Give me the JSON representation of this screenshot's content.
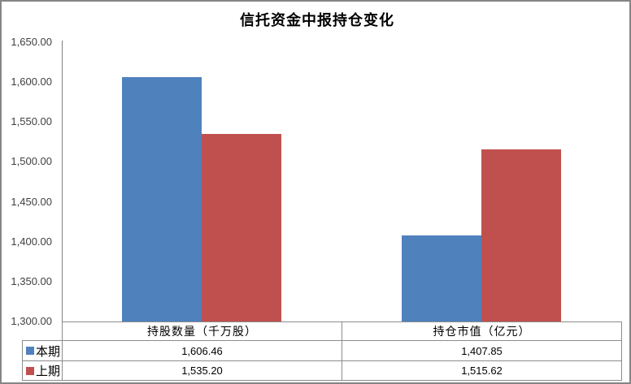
{
  "title": "信托资金中报持仓变化",
  "colors": {
    "series_current": "#4F81BD",
    "series_previous": "#C0504D",
    "table_border": "#8C8C8C",
    "axis_line": "#808080",
    "tick_text": "#3F3F3F"
  },
  "chart_data": {
    "type": "bar",
    "title": "信托资金中报持仓变化",
    "categories": [
      "持股数量（千万股）",
      "持仓市值（亿元）"
    ],
    "series": [
      {
        "name": "本期",
        "color": "#4F81BD",
        "values": [
          1606.46,
          1407.85
        ]
      },
      {
        "name": "上期",
        "color": "#C0504D",
        "values": [
          1535.2,
          1515.62
        ]
      }
    ],
    "ylim": [
      1300,
      1650
    ],
    "ytick_step": 50,
    "ytick_labels": [
      "1,650.00",
      "1,600.00",
      "1,550.00",
      "1,500.00",
      "1,450.00",
      "1,400.00",
      "1,350.00",
      "1,300.00"
    ],
    "grid": false,
    "legend_position": "table-left",
    "data_table_shown": true
  },
  "data_table": {
    "columns": [
      "持股数量（千万股）",
      "持仓市值（亿元）"
    ],
    "rows": [
      {
        "legend": "本期",
        "values": [
          "1,606.46",
          "1,407.85"
        ]
      },
      {
        "legend": "上期",
        "values": [
          "1,535.20",
          "1,515.62"
        ]
      }
    ]
  }
}
